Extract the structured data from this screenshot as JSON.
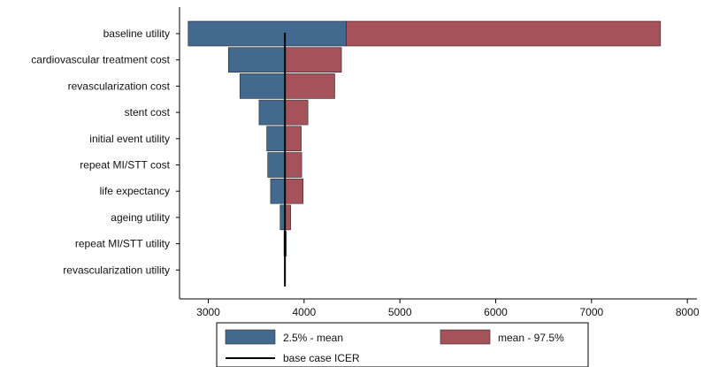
{
  "chart_data": {
    "type": "bar",
    "orientation": "horizontal",
    "style": "tornado",
    "categories": [
      "baseline utility",
      "cardiovascular treatment cost",
      "revascularization cost",
      "stent cost",
      "initial event utility",
      "repeat MI/STT cost",
      "life expectancy",
      "ageing utility",
      "repeat MI/STT utility",
      "revascularization utility"
    ],
    "base_value": 3800,
    "series": [
      {
        "name": "2.5% - mean",
        "color": "#44698f",
        "low": [
          2790,
          3210,
          3330,
          3530,
          3610,
          3620,
          3650,
          3750,
          3790,
          3795
        ],
        "high": [
          4440,
          3800,
          3800,
          3800,
          3800,
          3800,
          3800,
          3800,
          3800,
          3800
        ]
      },
      {
        "name": "mean - 97.5%",
        "color": "#a5525b",
        "low": [
          4440,
          3800,
          3800,
          3800,
          3800,
          3800,
          3800,
          3800,
          3800,
          3800
        ],
        "high": [
          7720,
          4390,
          4320,
          4040,
          3970,
          3975,
          3990,
          3860,
          3815,
          3805
        ]
      }
    ],
    "reference_line": {
      "name": "base case ICER",
      "value": 3800,
      "color": "#000000"
    },
    "xlim": [
      2700,
      8100
    ],
    "xticks": [
      3000,
      4000,
      5000,
      6000,
      7000,
      8000
    ],
    "xlabel": "",
    "ylabel": "",
    "title": "",
    "grid": false,
    "legend_position": "bottom"
  }
}
